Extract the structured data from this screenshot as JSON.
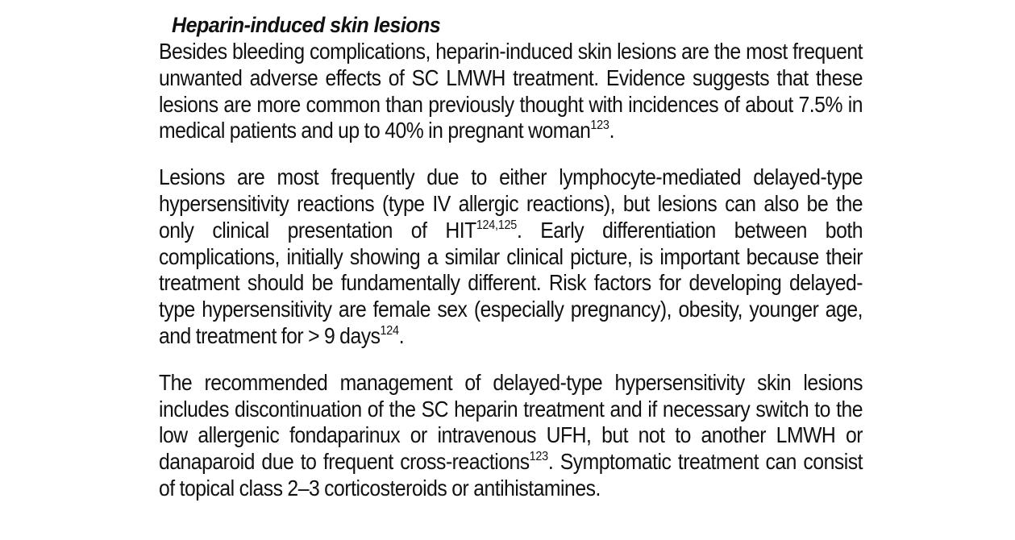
{
  "section": {
    "heading": "Heparin-induced skin lesions"
  },
  "paragraphs": [
    {
      "segments": [
        {
          "text": "Besides bleeding complications, heparin-induced skin lesions are the most frequent unwanted adverse effects of SC LMWH treatment. Evidence suggests that these lesions are more common than previously thought with incidences of about 7.5% in medical patients and up to 40% in pregnant woman"
        },
        {
          "sup": "123"
        },
        {
          "text": "."
        }
      ]
    },
    {
      "segments": [
        {
          "text": "Lesions are most frequently due to either lymphocyte-mediated delayed-type hypersensitivity reactions (type IV allergic reactions), but lesions can also be the only clinical presentation of HIT"
        },
        {
          "sup": "124,125"
        },
        {
          "text": ". Early differentiation between both complications, initially showing a similar clinical picture, is important because their treatment should be fundamentally different. Risk factors for developing delayed-type hypersensitivity are female sex (especially pregnancy), obesity, younger age, and treatment for > 9 days"
        },
        {
          "sup": "124"
        },
        {
          "text": "."
        }
      ]
    },
    {
      "segments": [
        {
          "text": "The recommended management of delayed-type hypersensitivity skin lesions includes discontinuation of the SC heparin treatment and if necessary switch to the low allergenic fondaparinux or intravenous UFH, but not to another LMWH or danaparoid due to frequent cross-reactions"
        },
        {
          "sup": "123"
        },
        {
          "text": ". Symptomatic treatment can consist of topical class 2–3 corticosteroids or antihistamines."
        }
      ]
    }
  ]
}
